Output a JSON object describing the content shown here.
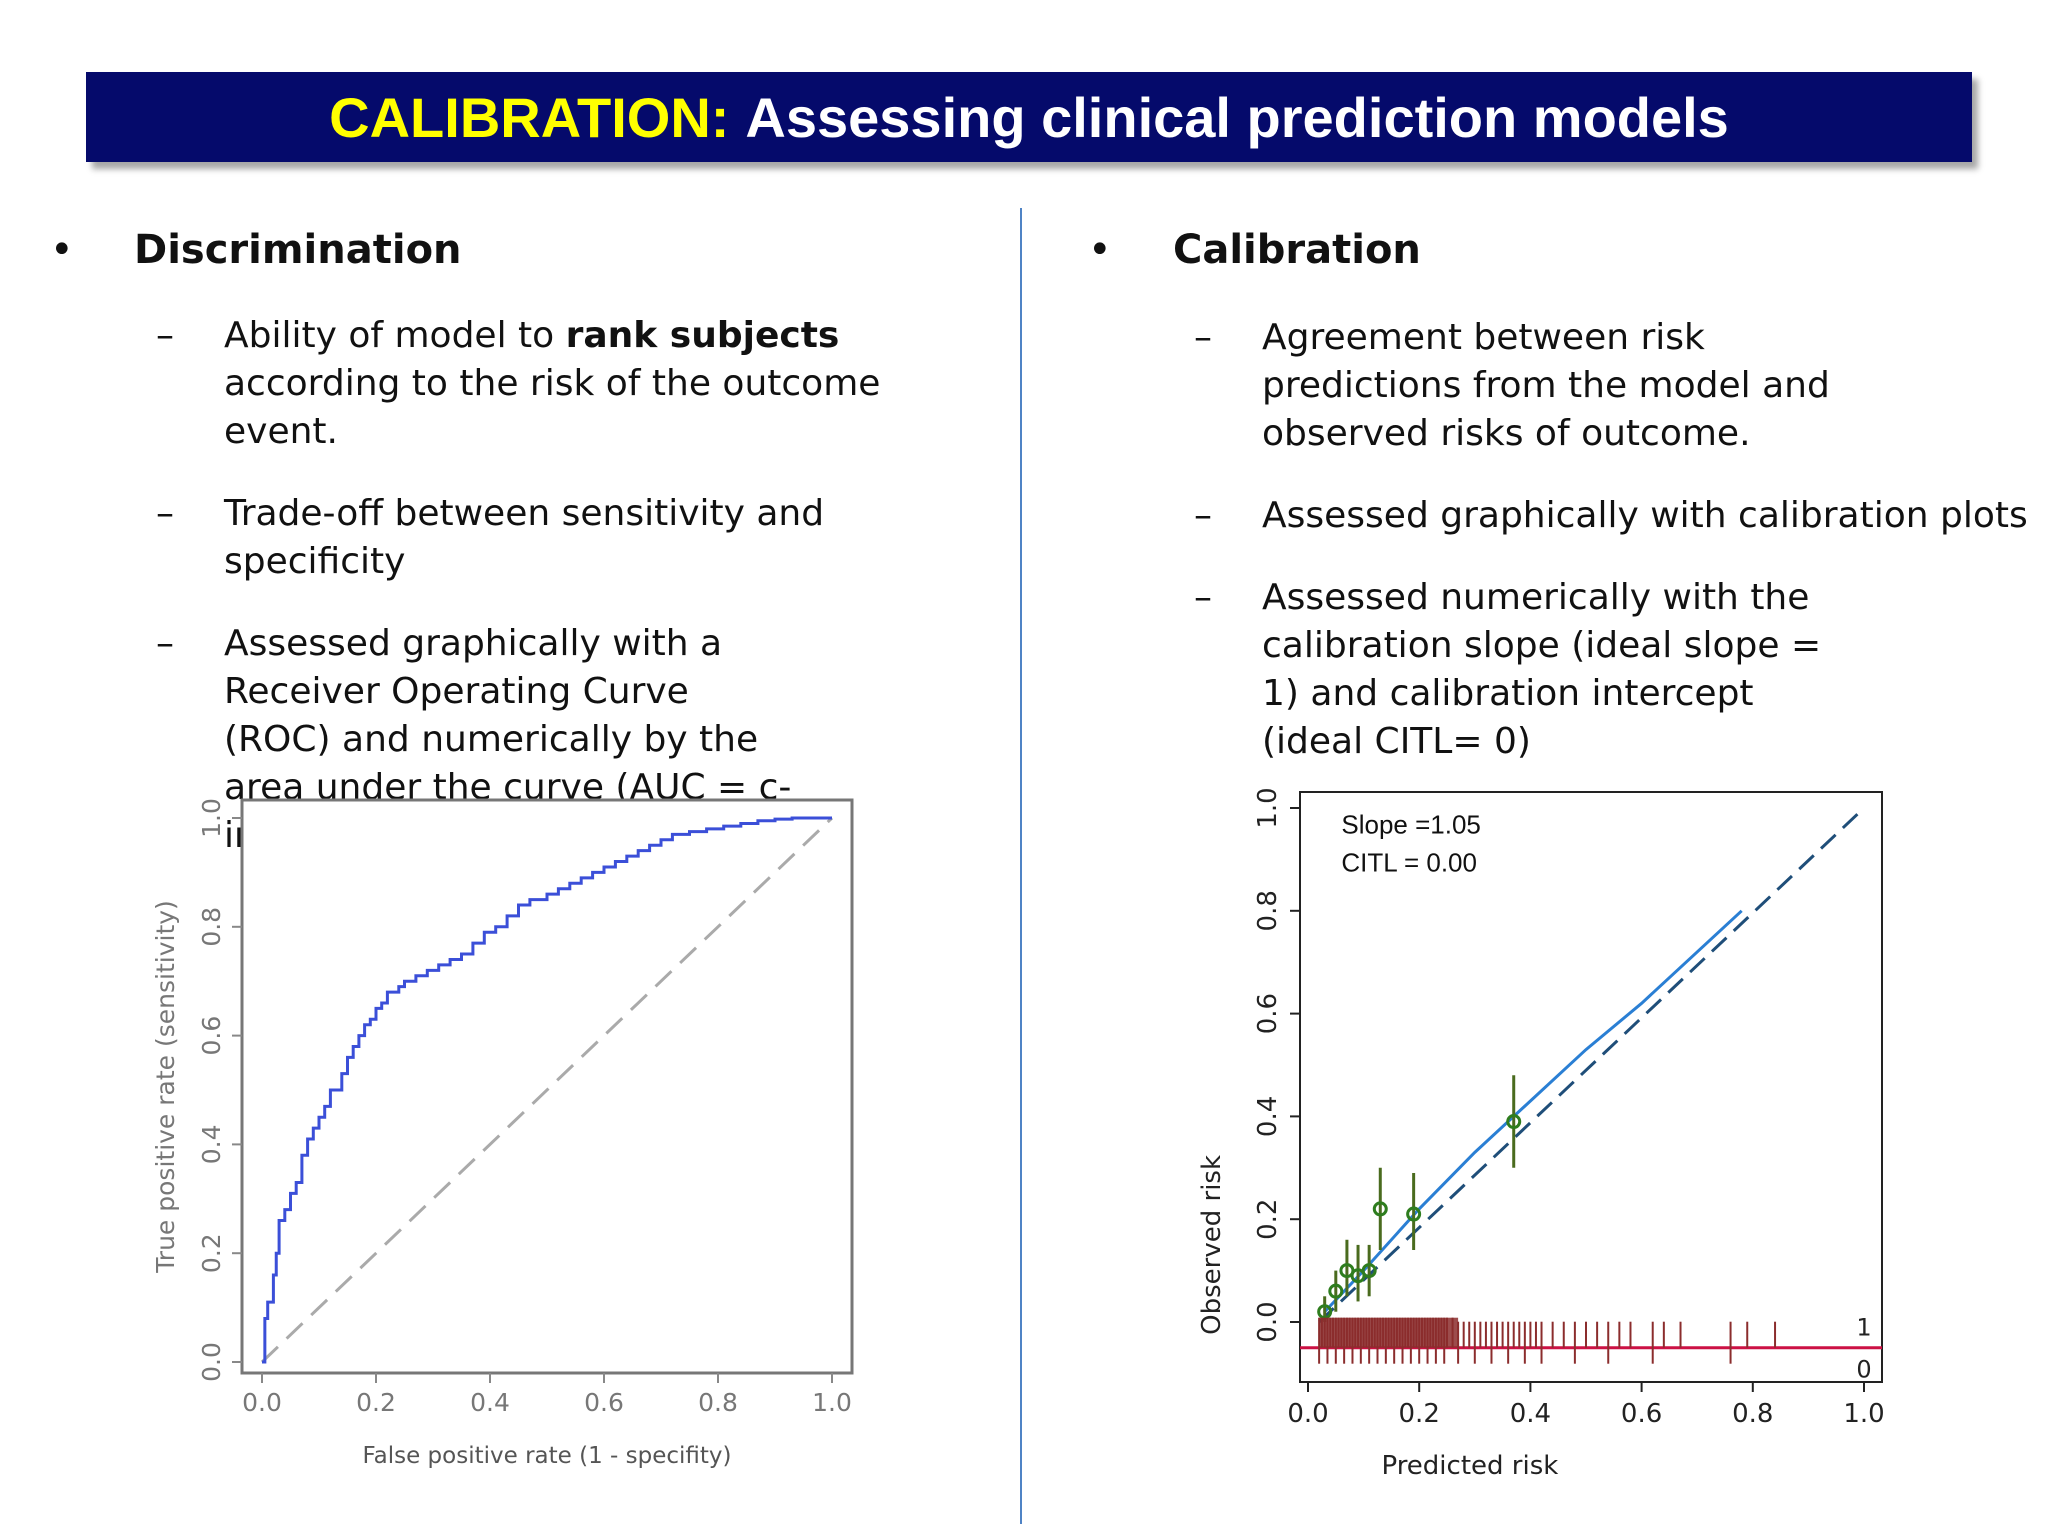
{
  "title": {
    "highlight": "CALIBRATION:",
    "rest": "Assessing clinical prediction models"
  },
  "left": {
    "heading": "Discrimination",
    "items": {
      "i1_pre": "Ability of model to ",
      "i1_bold": "rank subjects",
      "i1_post": " according to the risk of the outcome event.",
      "i2": "Trade-off between sensitivity and specificity",
      "i3": "Assessed graphically with a Receiver Operating Curve (ROC) and numerically by the area under the curve (AUC = c-index)"
    }
  },
  "right": {
    "heading": "Calibration",
    "items": {
      "i1": "Agreement between risk predictions from the model and observed risks of outcome.",
      "i2": "Assessed graphically with calibration plots",
      "i3": "Assessed numerically with the calibration slope (ideal slope = 1) and calibration intercept (ideal CITL= 0)"
    }
  },
  "bullet_char": "•",
  "dash_char": "–",
  "colors": {
    "title_bg": "#050a6b",
    "title_highlight": "#ffff00",
    "divider": "#4f83c5",
    "roc_curve": "#3b4fd8",
    "cal_curve": "#2a7fd4",
    "cal_points": "#2e7d1e",
    "rug": "#8b2d2d",
    "rug_line": "#cc1144"
  },
  "chart_data": [
    {
      "type": "line",
      "xlabel": "False positive rate (1 - specifity)",
      "ylabel": "True positive rate (sensitivity)",
      "xlim": [
        0,
        1
      ],
      "ylim": [
        0,
        1
      ],
      "x_ticks": [
        "0.0",
        "0.2",
        "0.4",
        "0.6",
        "0.8",
        "1.0"
      ],
      "y_ticks": [
        "0.0",
        "0.2",
        "0.4",
        "0.6",
        "0.8",
        "1.0"
      ],
      "series": [
        {
          "x": [
            0,
            0.005,
            0.01,
            0.02,
            0.025,
            0.03,
            0.04,
            0.05,
            0.06,
            0.07,
            0.08,
            0.09,
            0.1,
            0.11,
            0.12,
            0.14,
            0.15,
            0.16,
            0.17,
            0.18,
            0.19,
            0.2,
            0.21,
            0.22,
            0.24,
            0.25,
            0.27,
            0.29,
            0.31,
            0.33,
            0.35,
            0.37,
            0.39,
            0.41,
            0.43,
            0.45,
            0.47,
            0.5,
            0.52,
            0.54,
            0.56,
            0.58,
            0.6,
            0.62,
            0.64,
            0.66,
            0.68,
            0.7,
            0.72,
            0.75,
            0.78,
            0.81,
            0.84,
            0.87,
            0.9,
            0.93,
            0.96,
            1.0
          ],
          "y": [
            0,
            0.08,
            0.11,
            0.16,
            0.2,
            0.26,
            0.28,
            0.31,
            0.33,
            0.38,
            0.41,
            0.43,
            0.45,
            0.47,
            0.5,
            0.53,
            0.56,
            0.58,
            0.6,
            0.62,
            0.63,
            0.65,
            0.66,
            0.68,
            0.69,
            0.7,
            0.71,
            0.72,
            0.73,
            0.74,
            0.75,
            0.77,
            0.79,
            0.8,
            0.82,
            0.84,
            0.85,
            0.86,
            0.87,
            0.88,
            0.89,
            0.9,
            0.91,
            0.92,
            0.93,
            0.94,
            0.95,
            0.96,
            0.97,
            0.975,
            0.98,
            0.985,
            0.99,
            0.995,
            0.998,
            1.0,
            1.0,
            1.0
          ]
        },
        {
          "x": [
            0,
            1
          ],
          "y": [
            0,
            1
          ]
        }
      ]
    },
    {
      "type": "scatter",
      "xlabel": "Predicted risk",
      "ylabel": "Observed risk",
      "xlim": [
        0,
        1
      ],
      "ylim": [
        0,
        1
      ],
      "x_ticks": [
        "0.0",
        "0.2",
        "0.4",
        "0.6",
        "0.8",
        "1.0"
      ],
      "y_ticks": [
        "0.0",
        "0.2",
        "0.4",
        "0.6",
        "0.8",
        "1.0"
      ],
      "annotations": [
        "Slope =1.05",
        "CITL = 0.00"
      ],
      "rug_labels": [
        "1",
        "0"
      ],
      "points": [
        {
          "x": 0.03,
          "y": 0.02,
          "lo": 0.0,
          "hi": 0.05
        },
        {
          "x": 0.05,
          "y": 0.06,
          "lo": 0.02,
          "hi": 0.1
        },
        {
          "x": 0.07,
          "y": 0.1,
          "lo": 0.05,
          "hi": 0.16
        },
        {
          "x": 0.09,
          "y": 0.09,
          "lo": 0.04,
          "hi": 0.15
        },
        {
          "x": 0.11,
          "y": 0.1,
          "lo": 0.05,
          "hi": 0.15
        },
        {
          "x": 0.13,
          "y": 0.22,
          "lo": 0.14,
          "hi": 0.3
        },
        {
          "x": 0.19,
          "y": 0.21,
          "lo": 0.14,
          "hi": 0.29
        },
        {
          "x": 0.37,
          "y": 0.39,
          "lo": 0.3,
          "hi": 0.48
        }
      ],
      "fit": {
        "x": [
          0.03,
          0.1,
          0.2,
          0.3,
          0.4,
          0.5,
          0.6,
          0.7,
          0.78
        ],
        "y": [
          0.02,
          0.1,
          0.22,
          0.33,
          0.43,
          0.53,
          0.62,
          0.72,
          0.8
        ]
      },
      "ideal": {
        "x": [
          0.02,
          1.0
        ],
        "y": [
          0.0,
          1.0
        ]
      },
      "rug_x": [
        0.02,
        0.025,
        0.03,
        0.035,
        0.04,
        0.045,
        0.05,
        0.055,
        0.06,
        0.065,
        0.07,
        0.075,
        0.08,
        0.085,
        0.09,
        0.095,
        0.1,
        0.105,
        0.11,
        0.115,
        0.12,
        0.125,
        0.13,
        0.135,
        0.14,
        0.145,
        0.15,
        0.155,
        0.16,
        0.165,
        0.17,
        0.175,
        0.18,
        0.185,
        0.19,
        0.195,
        0.2,
        0.205,
        0.21,
        0.215,
        0.22,
        0.225,
        0.23,
        0.235,
        0.24,
        0.245,
        0.25,
        0.26,
        0.27,
        0.28,
        0.29,
        0.3,
        0.31,
        0.32,
        0.33,
        0.34,
        0.35,
        0.36,
        0.37,
        0.38,
        0.39,
        0.4,
        0.41,
        0.42,
        0.44,
        0.46,
        0.48,
        0.5,
        0.52,
        0.54,
        0.56,
        0.58,
        0.62,
        0.64,
        0.67,
        0.76,
        0.79,
        0.84
      ]
    }
  ]
}
